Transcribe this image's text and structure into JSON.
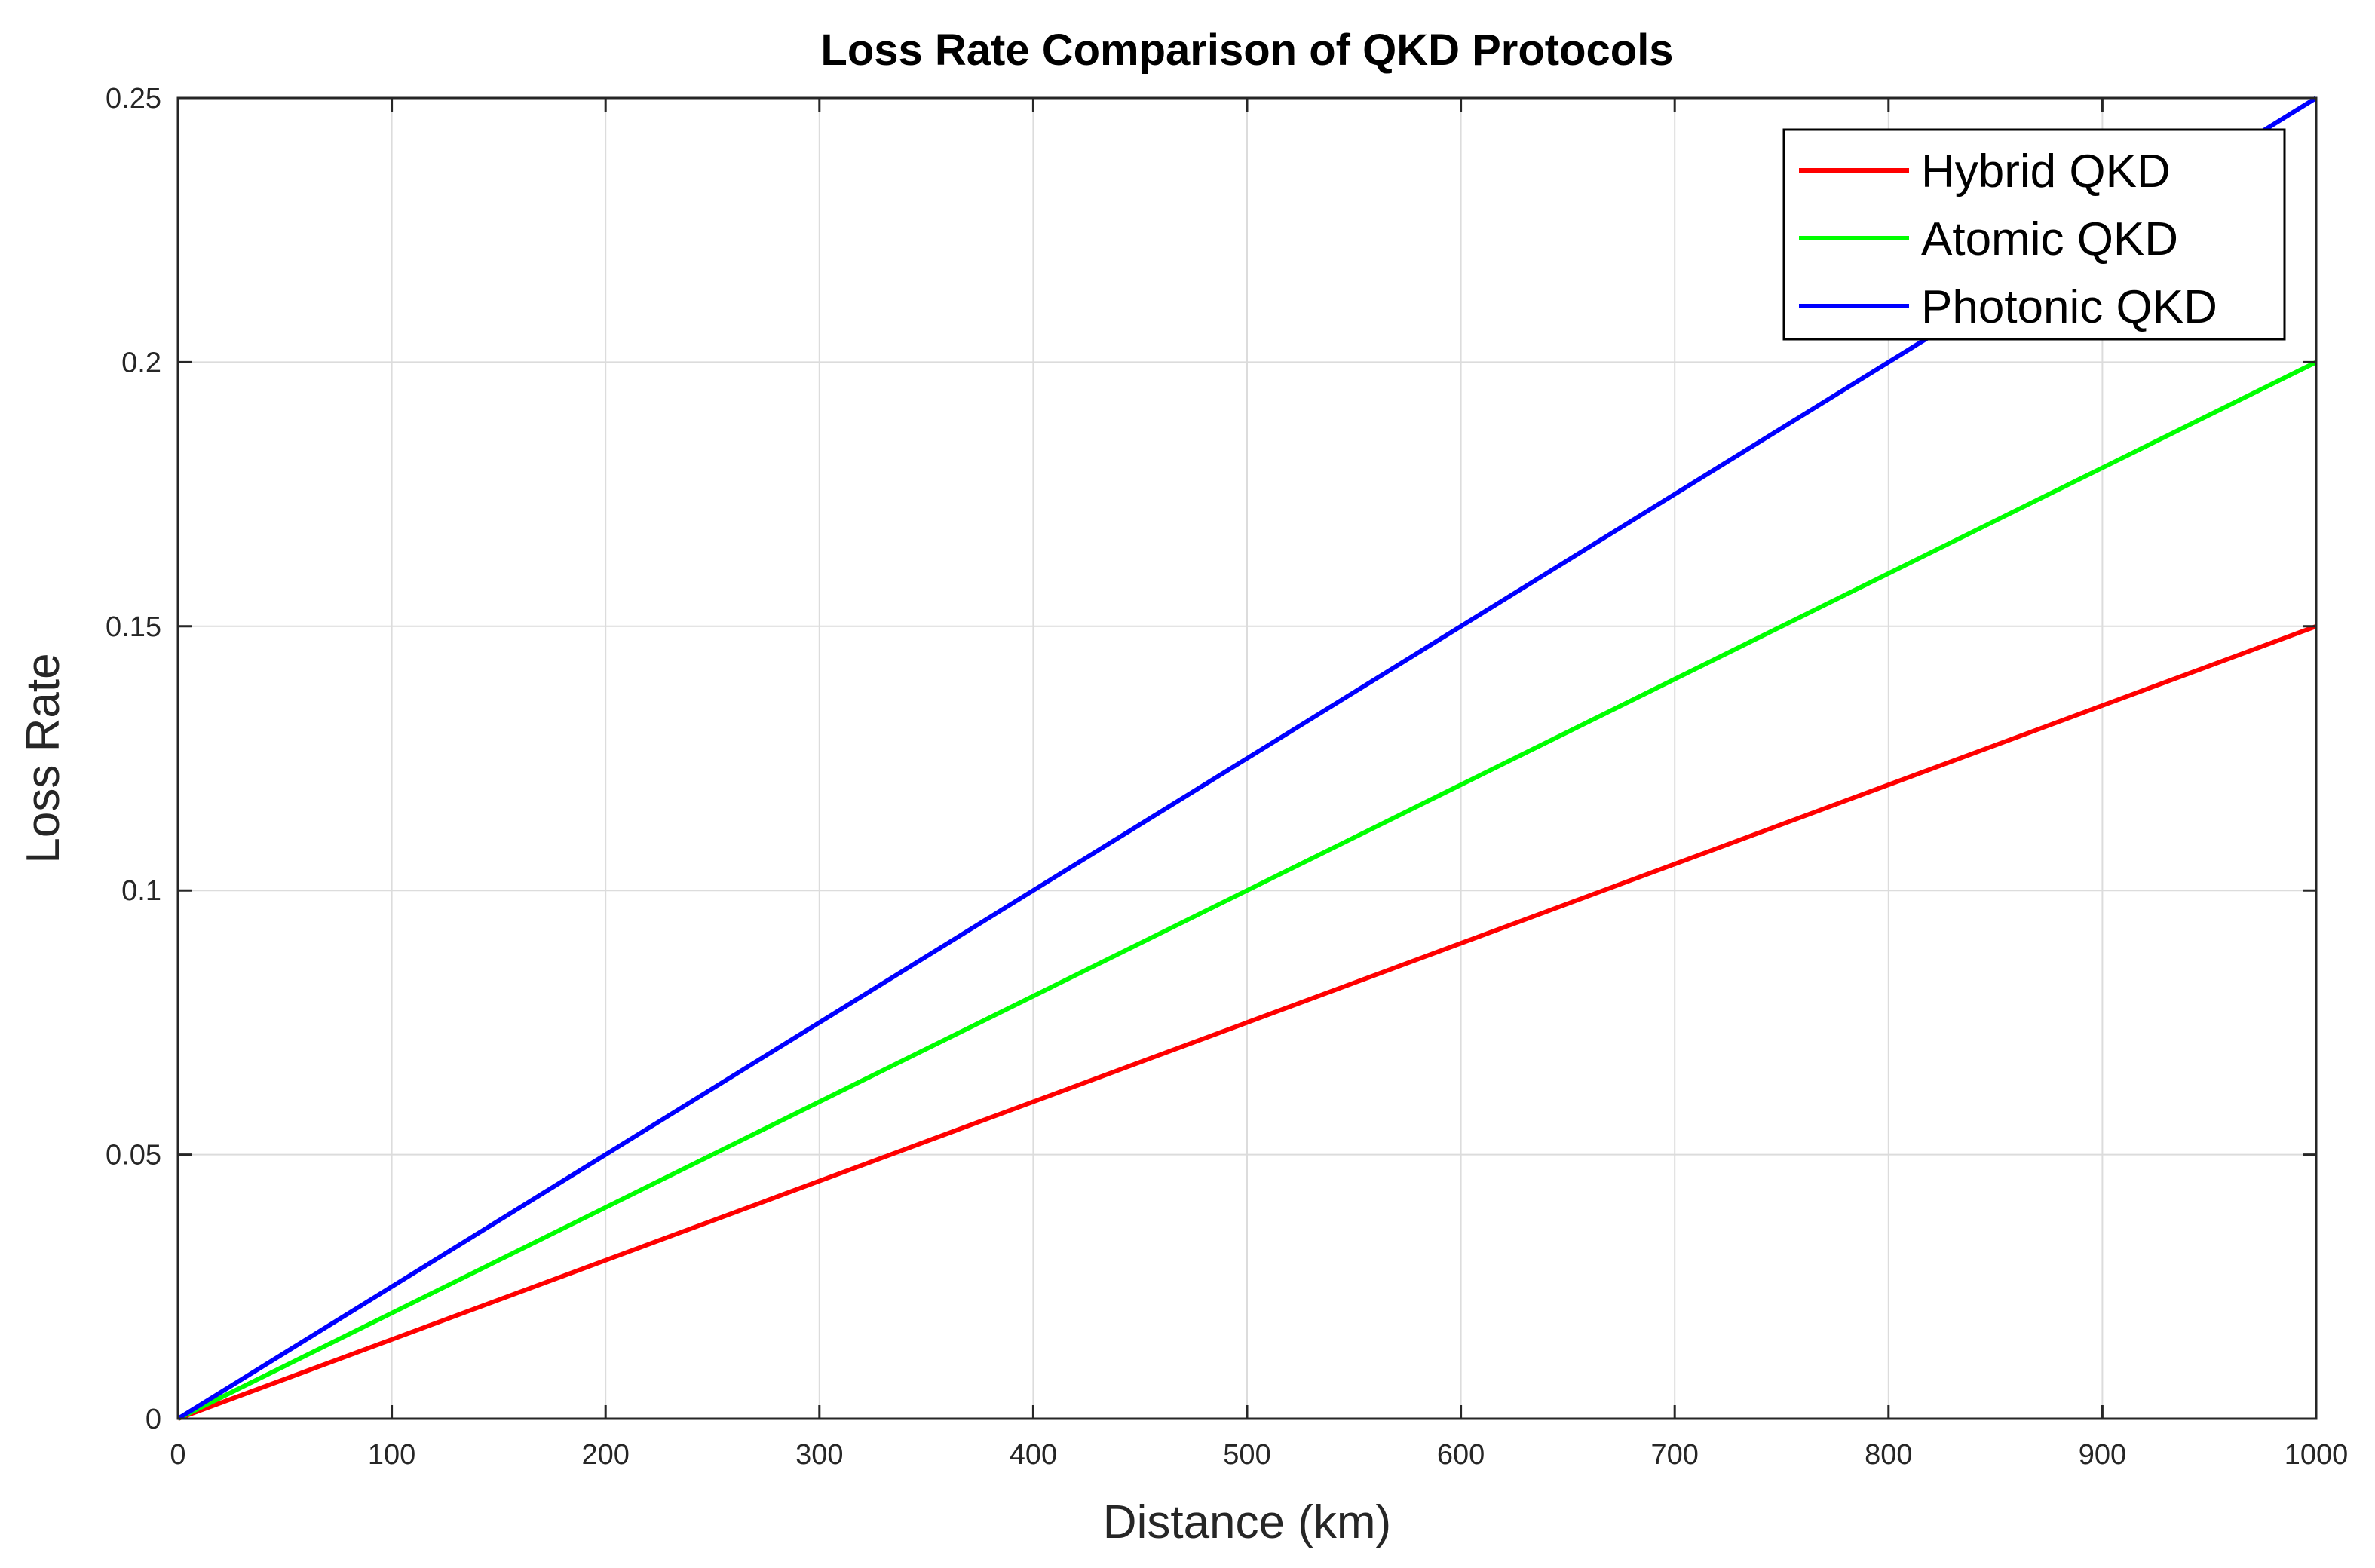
{
  "chart_data": {
    "type": "line",
    "title": "Loss Rate Comparison of QKD Protocols",
    "xlabel": "Distance (km)",
    "ylabel": "Loss Rate",
    "xlim": [
      0,
      1000
    ],
    "ylim": [
      0,
      0.25
    ],
    "xticks": [
      0,
      100,
      200,
      300,
      400,
      500,
      600,
      700,
      800,
      900,
      1000
    ],
    "xtick_labels": [
      "0",
      "100",
      "200",
      "300",
      "400",
      "500",
      "600",
      "700",
      "800",
      "900",
      "1000"
    ],
    "yticks": [
      0,
      0.05,
      0.1,
      0.15,
      0.2,
      0.25
    ],
    "ytick_labels": [
      "0",
      "0.05",
      "0.1",
      "0.15",
      "0.2",
      "0.25"
    ],
    "grid": true,
    "legend_position": "top-right",
    "x": [
      0,
      1000
    ],
    "series": [
      {
        "name": "Hybrid QKD",
        "color": "#ff0000",
        "values": [
          0,
          0.15
        ]
      },
      {
        "name": "Atomic QKD",
        "color": "#00ff00",
        "values": [
          0,
          0.2
        ]
      },
      {
        "name": "Photonic QKD",
        "color": "#0000ff",
        "values": [
          0,
          0.25
        ]
      }
    ]
  }
}
